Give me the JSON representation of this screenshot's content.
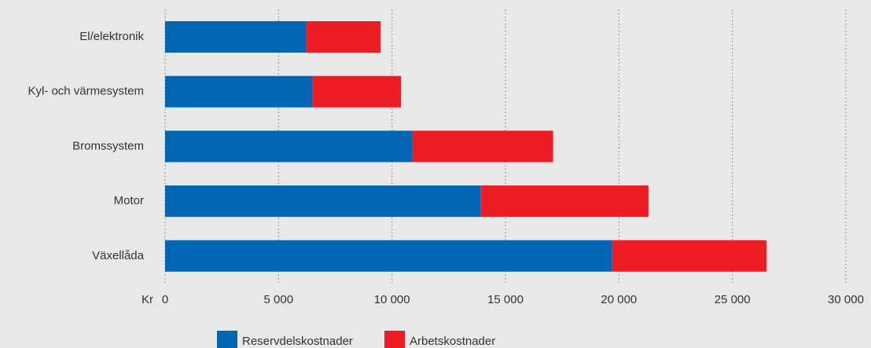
{
  "chart_data": {
    "type": "stacked-barh",
    "categories": [
      "El/elektronik",
      "Kyl- och värmesystem",
      "Bromssystem",
      "Motor",
      "Växellåda"
    ],
    "series": [
      {
        "name": "Reservdelskostnader",
        "color": "#0066b3",
        "values": [
          6200,
          6500,
          10900,
          13900,
          19700
        ]
      },
      {
        "name": "Arbetskostnader",
        "color": "#ee1c25",
        "values": [
          3300,
          3900,
          6200,
          7400,
          6800
        ]
      }
    ],
    "x_unit": "Kr",
    "xlim": [
      0,
      30000
    ],
    "xticks": [
      0,
      {
        "value": 5000,
        "label": "5 000"
      },
      {
        "value": 10000,
        "label": "10 000"
      },
      {
        "value": 15000,
        "label": "15 000"
      },
      {
        "value": 20000,
        "label": "20 000"
      },
      {
        "value": 25000,
        "label": "25 000"
      },
      {
        "value": 30000,
        "label": "30 000"
      }
    ],
    "grid": true
  }
}
